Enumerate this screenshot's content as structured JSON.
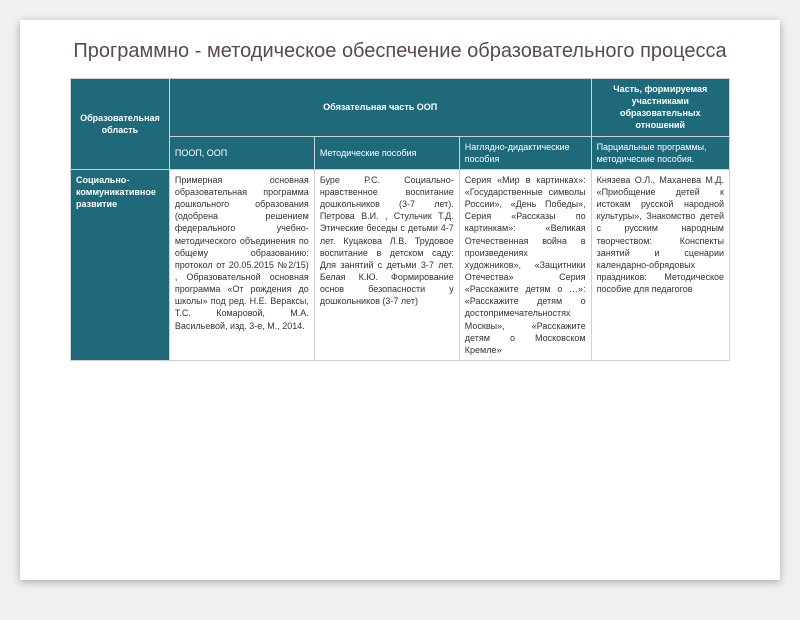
{
  "title": "Программно - методическое обеспечение образовательного процесса",
  "table": {
    "headers": {
      "area": "Образовательная область",
      "mandatory": "Обязательная часть ООП",
      "participants": "Часть, формируемая участниками образовательных отношений",
      "sub_poop": "ПООП, ООП",
      "sub_method": "Методические пособия",
      "sub_visual": "Наглядно-дидактические пособия",
      "sub_part": "Парциальные программы, методические пособия."
    },
    "row": {
      "area": "Социально-коммуникативное развитие",
      "poop": "Примерная основная образовательная программа дошкольного образования (одобрена решением федерального учебно-методического объединения по общему образованию: протокол от 20.05.2015 №2/15) , Образовательной основная программа «От рождения до школы» под ред. Н.Е. Вераксы, Т.С. Комаровой, М.А. Васильевой, изд. 3-е, М., 2014.",
      "method": "Буре Р.С. Социально-нравственное воспитание дошкольников (3-7 лет). Петрова В.И. , Стульчик Т.Д. Этические беседы с детьми 4-7 лет. Куцакова Л.В. Трудовое воспитание в детском саду: Для занятий с детьми 3-7 лет. Белая К.Ю. Формирование основ безопасности у дошкольников (3-7 лет)",
      "visual": "Серия «Мир в картинках»: «Государственные символы России», «День Победы», Серия «Рассказы по картинкам»: «Великая Отечественная война в произведениях художников», «Защитники Отечества» Серия «Расскажите детям о …»: «Расскажите детям о достопримечательностях Москвы», «Расскажите детям о Московском Кремле»",
      "partial": "Князева О.Л., Маханева М.Д. «Приобщение детей к истокам русской народной культуры», Знакомство детей с русским народным творчеством: Конспекты занятий и сценарии календарно-обрядовых праздников: Методическое пособие для педагогов"
    }
  },
  "colors": {
    "header_bg": "#1f6a7a",
    "header_fg": "#ffffff",
    "title_color": "#5a4a4a",
    "border": "#d0d0d0",
    "cell_text": "#333333"
  },
  "layout": {
    "col_widths_pct": [
      15,
      22,
      22,
      20,
      21
    ],
    "title_fontsize": 20,
    "cell_fontsize": 9
  }
}
